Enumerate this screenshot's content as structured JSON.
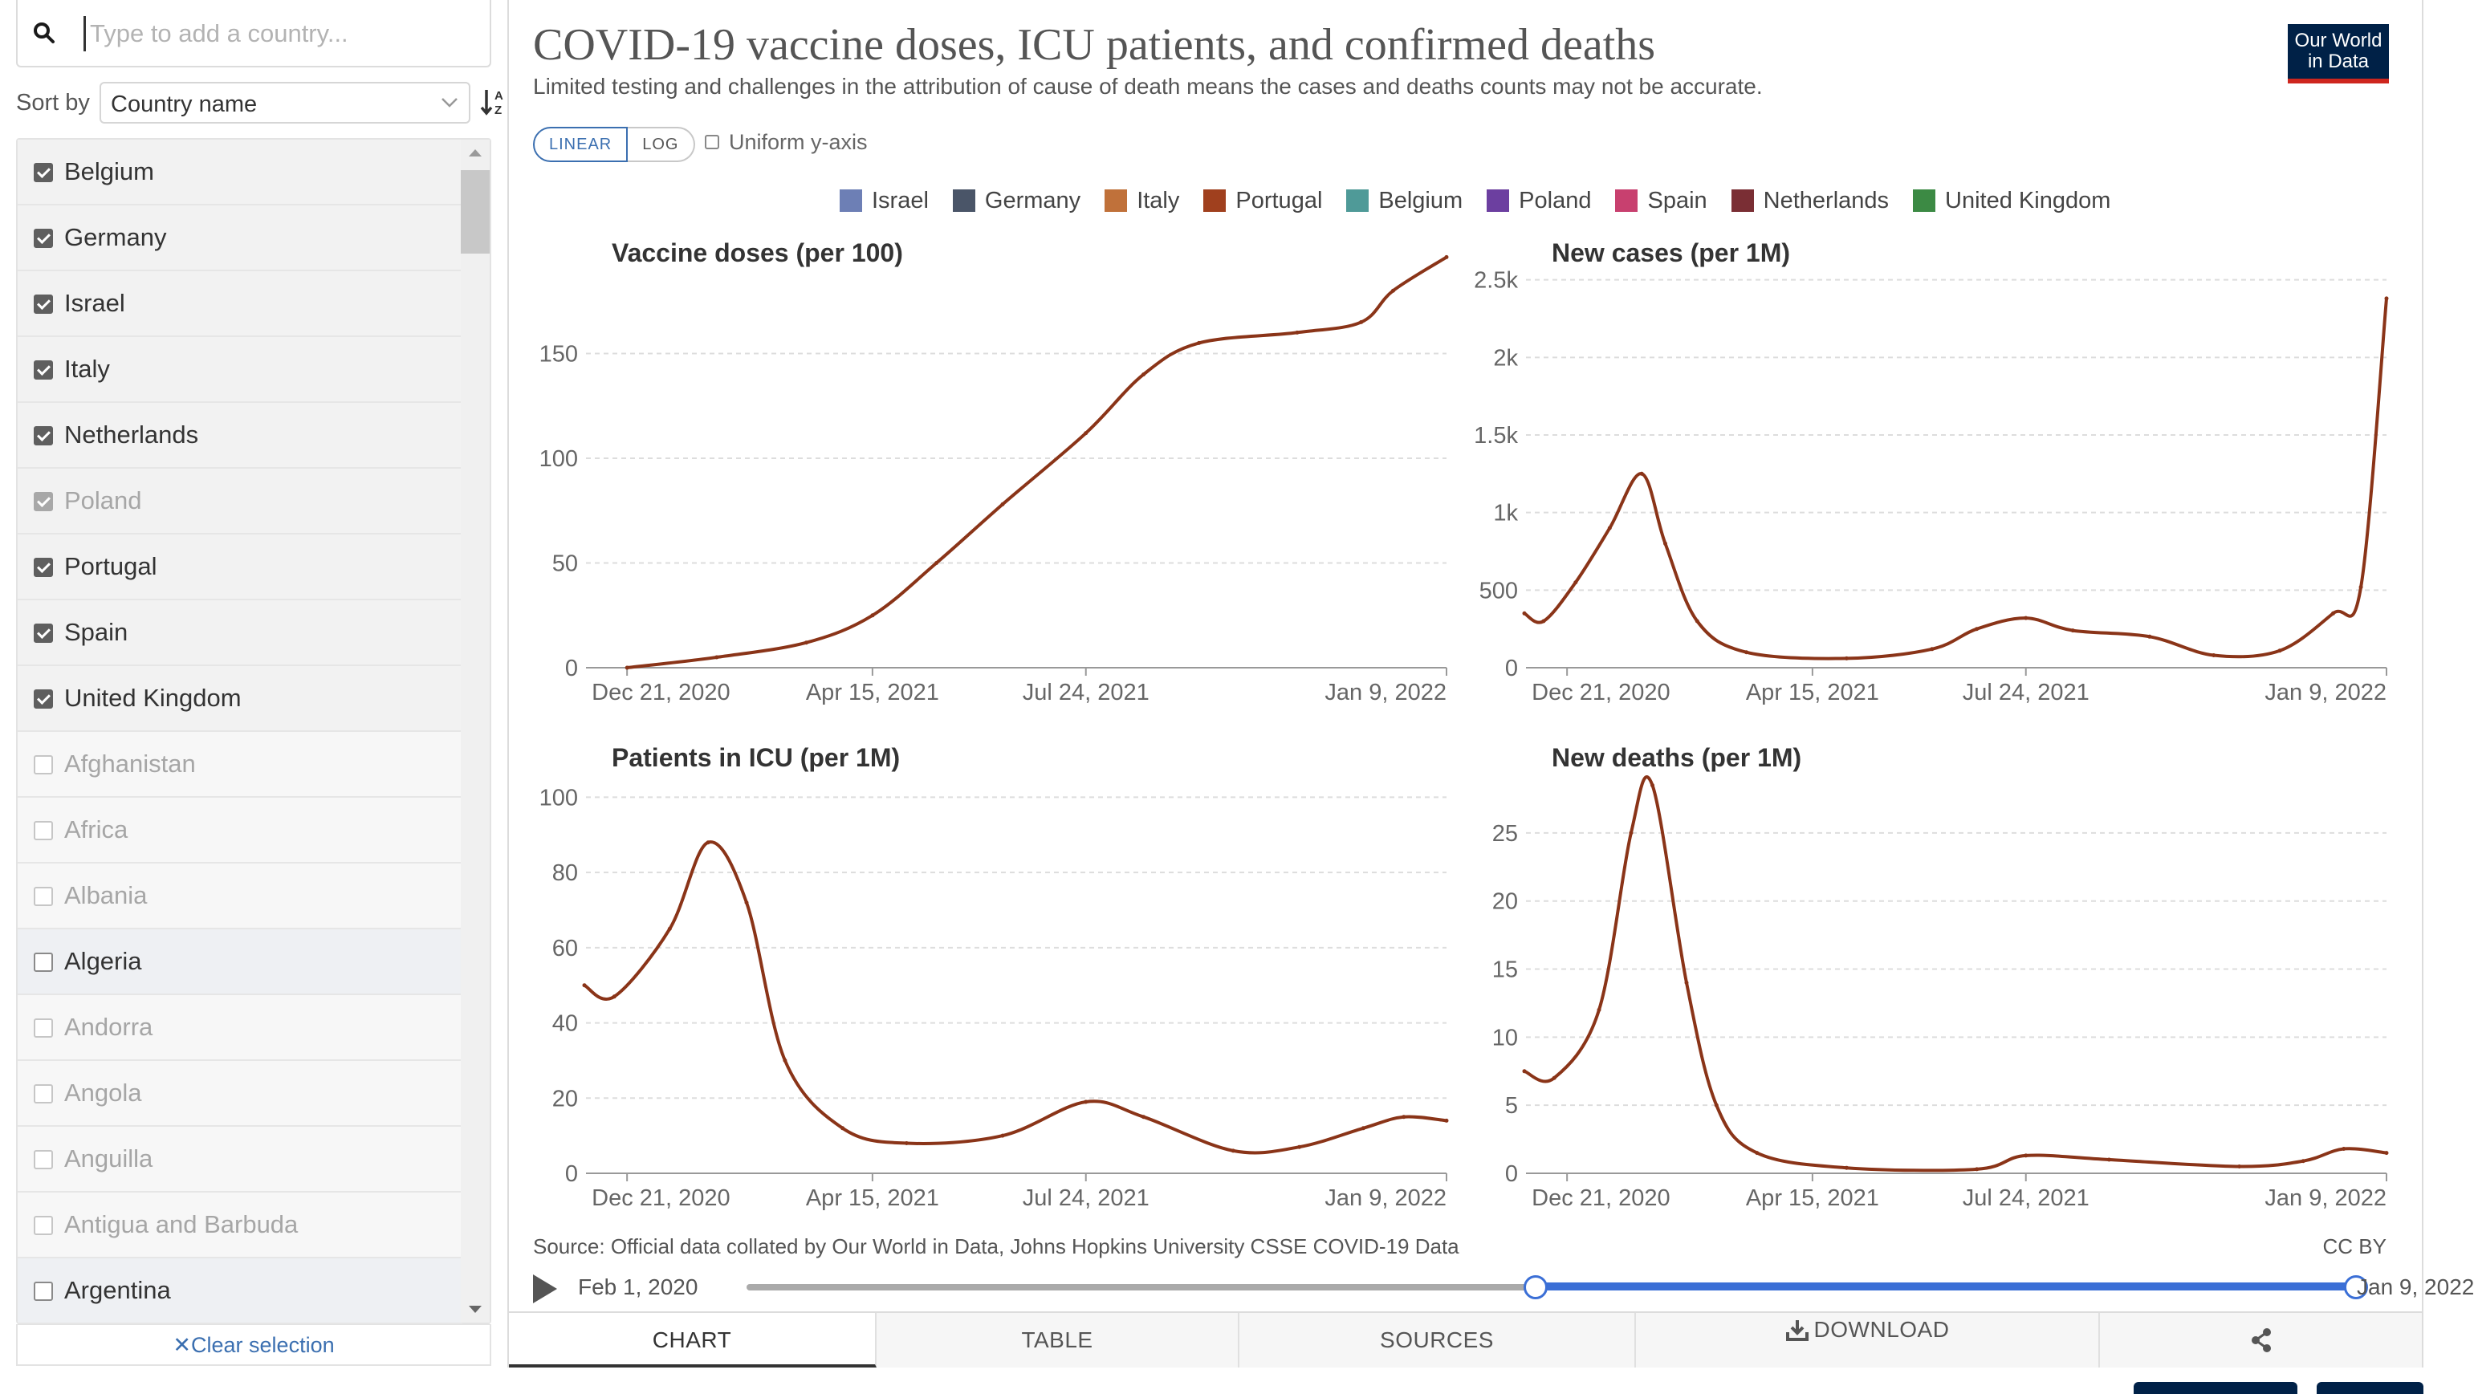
{
  "search": {
    "placeholder": "Type to add a country..."
  },
  "sort": {
    "label": "Sort by",
    "value": "Country name"
  },
  "countries": [
    {
      "name": "Belgium",
      "checked": true,
      "faded": false
    },
    {
      "name": "Germany",
      "checked": true,
      "faded": false
    },
    {
      "name": "Israel",
      "checked": true,
      "faded": false
    },
    {
      "name": "Italy",
      "checked": true,
      "faded": false
    },
    {
      "name": "Netherlands",
      "checked": true,
      "faded": false
    },
    {
      "name": "Poland",
      "checked": true,
      "faded": true
    },
    {
      "name": "Portugal",
      "checked": true,
      "faded": false
    },
    {
      "name": "Spain",
      "checked": true,
      "faded": false
    },
    {
      "name": "United Kingdom",
      "checked": true,
      "faded": false
    },
    {
      "name": "Afghanistan",
      "checked": false,
      "faded": true
    },
    {
      "name": "Africa",
      "checked": false,
      "faded": true
    },
    {
      "name": "Albania",
      "checked": false,
      "faded": true
    },
    {
      "name": "Algeria",
      "checked": false,
      "faded": false
    },
    {
      "name": "Andorra",
      "checked": false,
      "faded": true
    },
    {
      "name": "Angola",
      "checked": false,
      "faded": true
    },
    {
      "name": "Anguilla",
      "checked": false,
      "faded": true
    },
    {
      "name": "Antigua and Barbuda",
      "checked": false,
      "faded": true
    },
    {
      "name": "Argentina",
      "checked": false,
      "faded": false
    }
  ],
  "clear_selection": "Clear selection",
  "header": {
    "title": "COVID-19 vaccine doses, ICU patients, and confirmed deaths",
    "subtitle": "Limited testing and challenges in the attribution of cause of death means the cases and deaths counts may not be accurate.",
    "logo_line1": "Our World",
    "logo_line2": "in Data"
  },
  "controls": {
    "linear": "LINEAR",
    "log": "LOG",
    "uniform_y": "Uniform y-axis"
  },
  "legend": [
    {
      "name": "Israel",
      "color": "#6d7fb5"
    },
    {
      "name": "Germany",
      "color": "#4a5568"
    },
    {
      "name": "Italy",
      "color": "#c0713a"
    },
    {
      "name": "Portugal",
      "color": "#a0401e"
    },
    {
      "name": "Belgium",
      "color": "#4f9a98"
    },
    {
      "name": "Poland",
      "color": "#6c3fa0"
    },
    {
      "name": "Spain",
      "color": "#c8406f"
    },
    {
      "name": "Netherlands",
      "color": "#7a2e34"
    },
    {
      "name": "United Kingdom",
      "color": "#3c8a44"
    }
  ],
  "chart_data": [
    {
      "type": "line",
      "title": "Vaccine doses (per 100)",
      "x_ticks": [
        "Dec 21, 2020",
        "Apr 15, 2021",
        "Jul 24, 2021",
        "Jan 9, 2022"
      ],
      "y_ticks": [
        "0",
        "50",
        "100",
        "150"
      ],
      "ylim": [
        0,
        200
      ],
      "highlight_series": "Portugal",
      "series": [
        {
          "name": "Portugal",
          "x": [
            "2020-12-21",
            "2021-02-01",
            "2021-03-15",
            "2021-04-15",
            "2021-05-15",
            "2021-06-15",
            "2021-07-24",
            "2021-08-20",
            "2021-09-15",
            "2021-10-31",
            "2021-11-30",
            "2021-12-15",
            "2022-01-09"
          ],
          "values": [
            0,
            5,
            12,
            25,
            50,
            78,
            112,
            140,
            155,
            160,
            165,
            180,
            196
          ]
        }
      ]
    },
    {
      "type": "line",
      "title": "New cases (per 1M)",
      "x_ticks": [
        "Dec 21, 2020",
        "Apr 15, 2021",
        "Jul 24, 2021",
        "Jan 9, 2022"
      ],
      "y_ticks": [
        "0",
        "500",
        "1k",
        "1.5k",
        "2k",
        "2.5k"
      ],
      "ylim": [
        0,
        2700
      ],
      "highlight_series": "Portugal",
      "series": [
        {
          "name": "Portugal",
          "x": [
            "2020-12-01",
            "2020-12-10",
            "2020-12-25",
            "2021-01-10",
            "2021-01-25",
            "2021-02-05",
            "2021-02-20",
            "2021-03-15",
            "2021-05-01",
            "2021-06-10",
            "2021-07-01",
            "2021-07-24",
            "2021-08-15",
            "2021-09-20",
            "2021-10-20",
            "2021-11-20",
            "2021-12-15",
            "2021-12-28",
            "2022-01-09"
          ],
          "values": [
            350,
            300,
            550,
            900,
            1250,
            800,
            300,
            100,
            60,
            120,
            250,
            320,
            240,
            200,
            80,
            110,
            350,
            520,
            2380
          ]
        }
      ]
    },
    {
      "type": "line",
      "title": "Patients in ICU (per 1M)",
      "x_ticks": [
        "Dec 21, 2020",
        "Apr 15, 2021",
        "Jul 24, 2021",
        "Jan 9, 2022"
      ],
      "y_ticks": [
        "0",
        "20",
        "40",
        "60",
        "80",
        "100"
      ],
      "ylim": [
        0,
        105
      ],
      "highlight_series": "Portugal",
      "series": [
        {
          "name": "Portugal",
          "x": [
            "2020-12-01",
            "2020-12-15",
            "2021-01-10",
            "2021-01-28",
            "2021-02-15",
            "2021-03-05",
            "2021-04-01",
            "2021-05-01",
            "2021-06-15",
            "2021-07-24",
            "2021-08-20",
            "2021-10-01",
            "2021-11-01",
            "2021-12-01",
            "2021-12-20",
            "2022-01-09"
          ],
          "values": [
            50,
            47,
            65,
            88,
            72,
            30,
            12,
            8,
            10,
            19,
            15,
            6,
            7,
            12,
            15,
            14
          ]
        }
      ]
    },
    {
      "type": "line",
      "title": "New deaths (per 1M)",
      "x_ticks": [
        "Dec 21, 2020",
        "Apr 15, 2021",
        "Jul 24, 2021",
        "Jan 9, 2022"
      ],
      "y_ticks": [
        "0",
        "5",
        "10",
        "15",
        "20",
        "25"
      ],
      "ylim": [
        0,
        29
      ],
      "highlight_series": "Portugal",
      "series": [
        {
          "name": "Portugal",
          "x": [
            "2020-12-01",
            "2020-12-15",
            "2021-01-05",
            "2021-01-20",
            "2021-01-30",
            "2021-02-15",
            "2021-03-01",
            "2021-03-20",
            "2021-05-01",
            "2021-07-01",
            "2021-07-24",
            "2021-09-01",
            "2021-11-01",
            "2021-12-01",
            "2021-12-20",
            "2022-01-09"
          ],
          "values": [
            7.5,
            7,
            12,
            25,
            28.5,
            14,
            5,
            1.5,
            0.4,
            0.3,
            1.3,
            1.0,
            0.5,
            0.9,
            1.8,
            1.5
          ]
        }
      ]
    }
  ],
  "footer": {
    "source": "Source: Official data collated by Our World in Data, Johns Hopkins University CSSE COVID-19 Data",
    "license": "CC BY"
  },
  "timeline": {
    "start_label": "Feb 1, 2020",
    "end_label": "Jan 9, 2022"
  },
  "tabs": [
    "CHART",
    "TABLE",
    "SOURCES",
    "DOWNLOAD"
  ]
}
